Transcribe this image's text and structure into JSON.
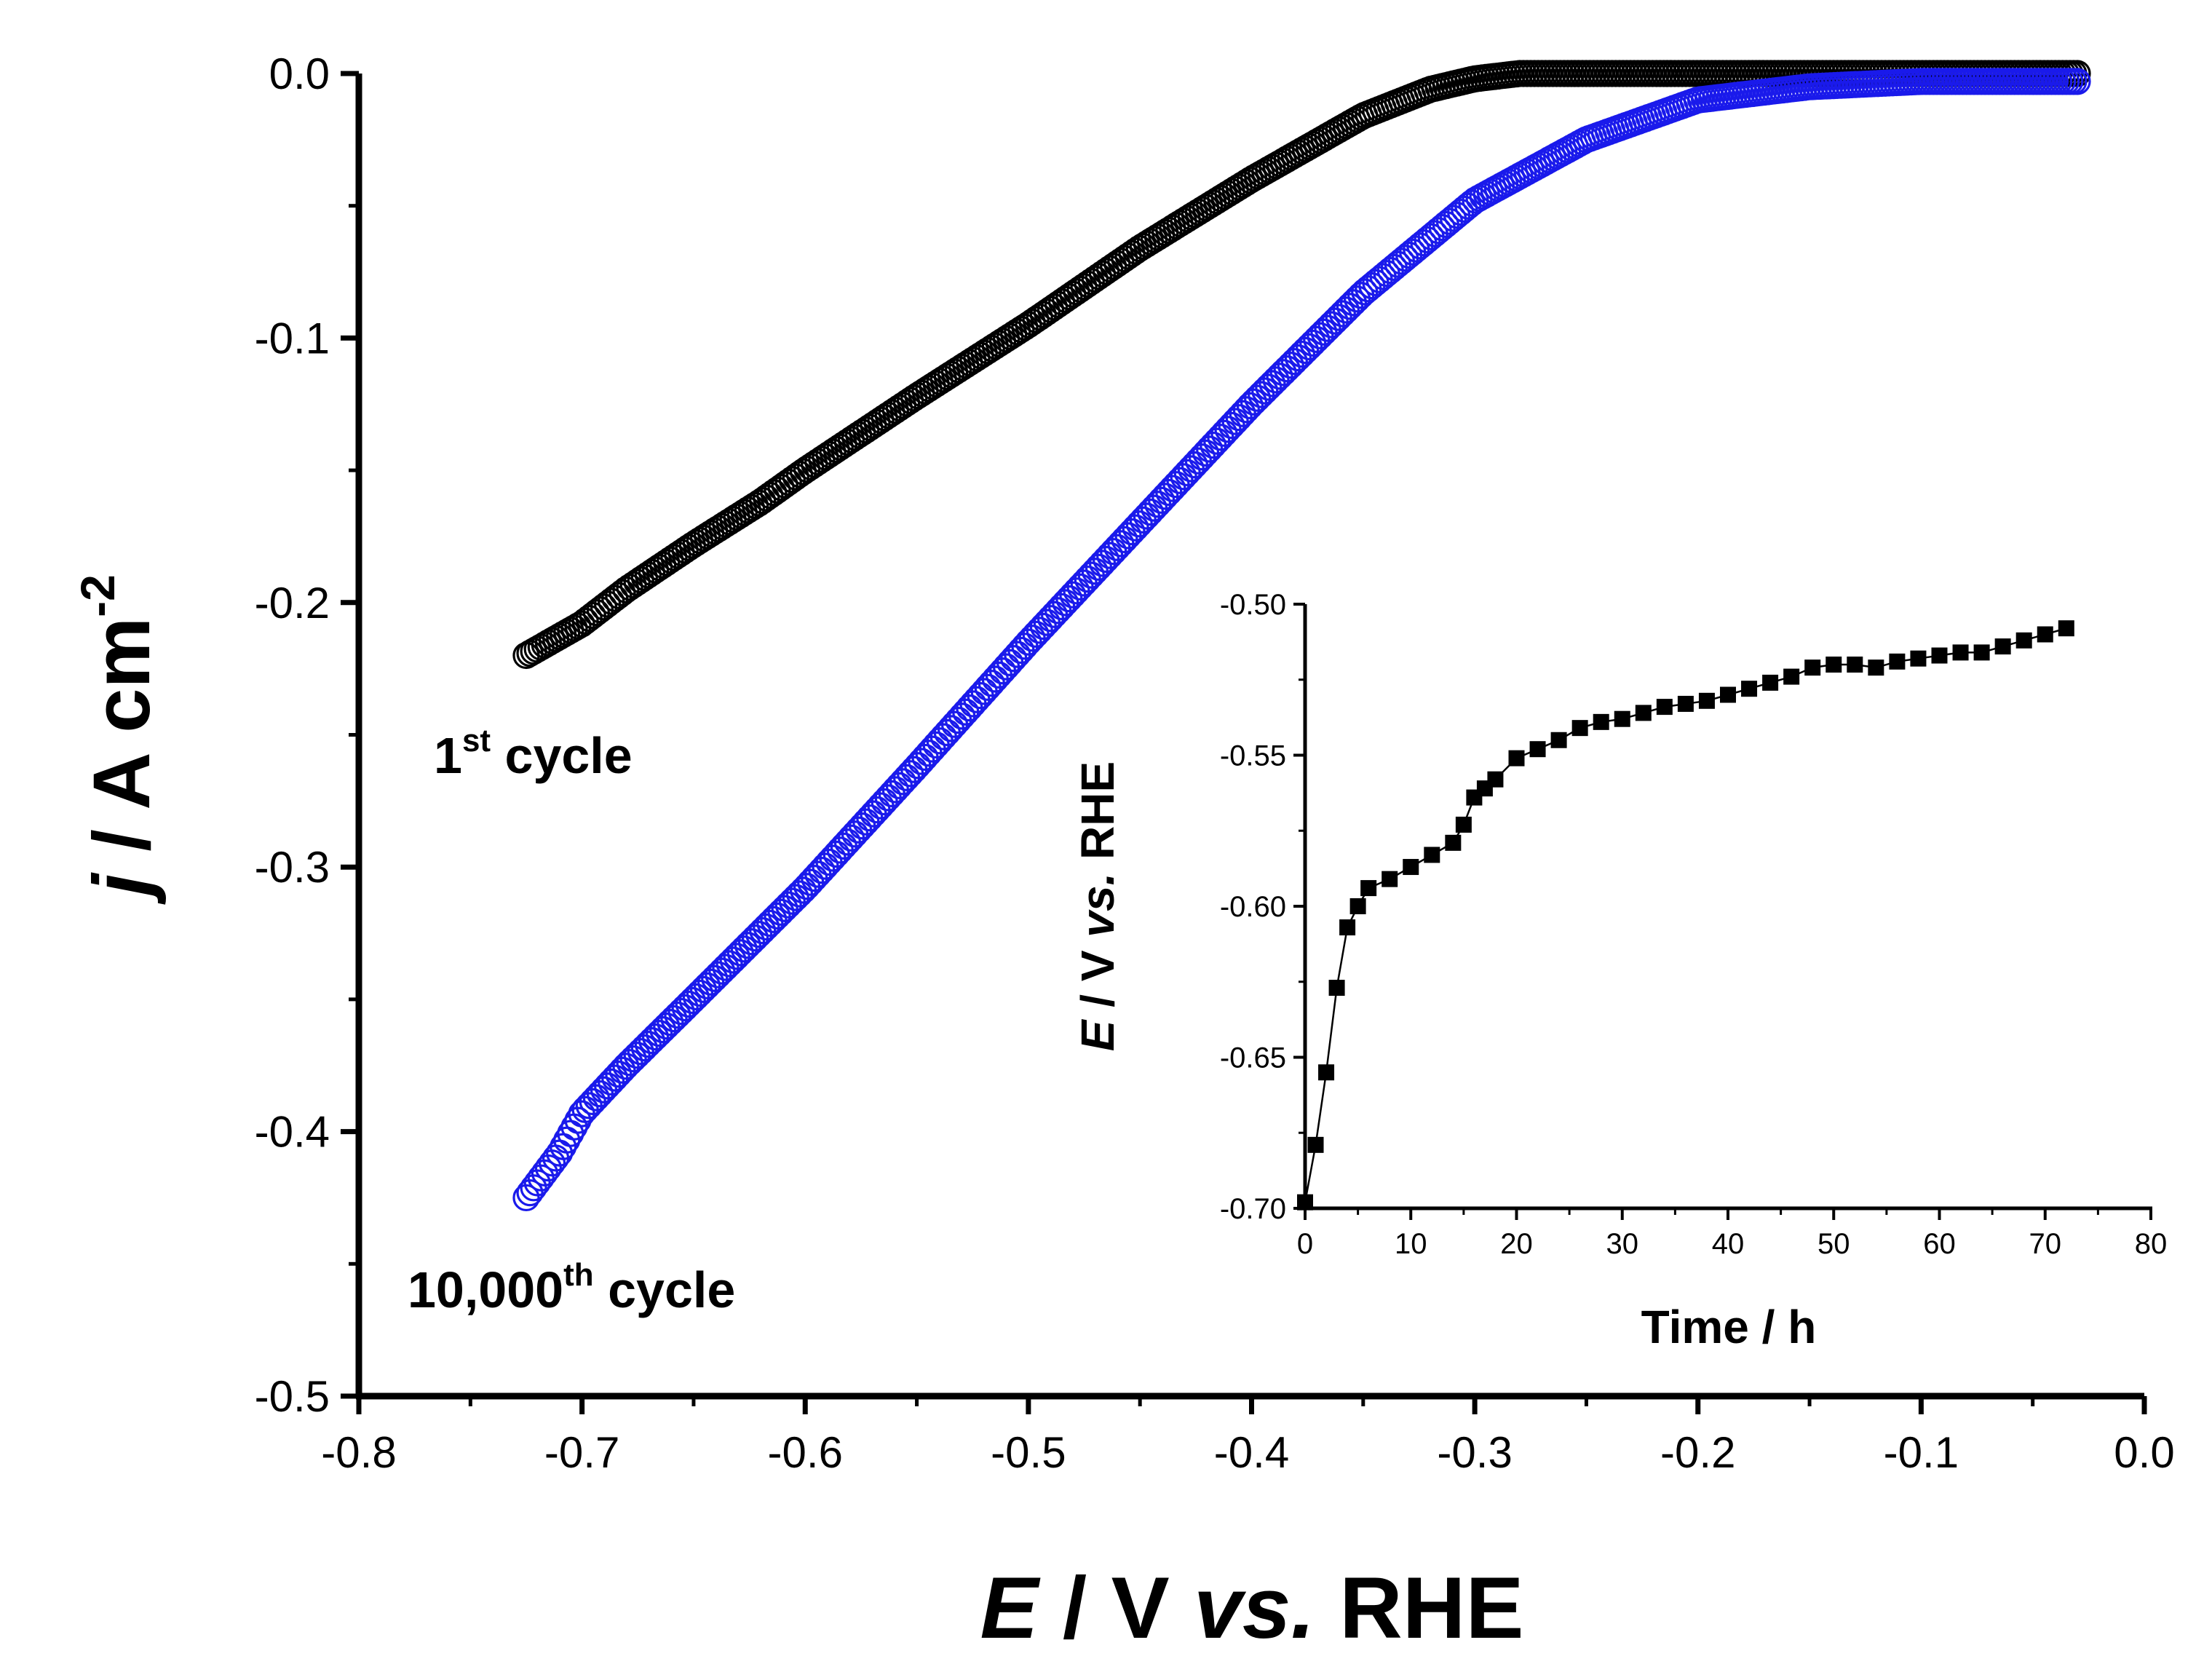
{
  "chart_data": [
    {
      "type": "scatter",
      "id": "main",
      "xlim": [
        -0.8,
        0.0
      ],
      "ylim": [
        -0.5,
        0.0
      ],
      "x_ticks": [
        "-0.8",
        "-0.7",
        "-0.6",
        "-0.5",
        "-0.4",
        "-0.3",
        "-0.2",
        "-0.1",
        "0.0"
      ],
      "y_ticks": [
        "0.0",
        "-0.1",
        "-0.2",
        "-0.3",
        "-0.4",
        "-0.5"
      ],
      "xlabel": {
        "italic": "E",
        "plain1": " / V ",
        "italic2": "vs.",
        "plain2": " RHE"
      },
      "ylabel": {
        "italic": "j",
        "plain": " / A cm",
        "sup": "-2"
      },
      "series": [
        {
          "name": "1st cycle",
          "color": "#000000",
          "marker": "open-circle",
          "label": {
            "base": "1",
            "sup": "st",
            "rest": " cycle"
          },
          "x": [
            -0.725,
            -0.7,
            -0.68,
            -0.65,
            -0.62,
            -0.6,
            -0.55,
            -0.5,
            -0.45,
            -0.4,
            -0.35,
            -0.32,
            -0.3,
            -0.28,
            -0.25,
            -0.2,
            -0.15,
            -0.1,
            -0.03
          ],
          "y": [
            -0.22,
            -0.208,
            -0.195,
            -0.178,
            -0.162,
            -0.15,
            -0.122,
            -0.095,
            -0.066,
            -0.04,
            -0.016,
            -0.006,
            -0.002,
            0.0,
            0.0,
            0.0,
            0.0,
            0.0,
            0.0
          ]
        },
        {
          "name": "10,000th cycle",
          "color": "#1a1aeb",
          "marker": "open-circle",
          "label": {
            "base": "10,000",
            "sup": "th",
            "rest": " cycle"
          },
          "x": [
            -0.725,
            -0.71,
            -0.7,
            -0.68,
            -0.65,
            -0.6,
            -0.55,
            -0.5,
            -0.45,
            -0.4,
            -0.35,
            -0.3,
            -0.25,
            -0.2,
            -0.15,
            -0.1,
            -0.05,
            -0.03
          ],
          "y": [
            -0.425,
            -0.408,
            -0.393,
            -0.375,
            -0.35,
            -0.308,
            -0.262,
            -0.215,
            -0.17,
            -0.125,
            -0.083,
            -0.048,
            -0.025,
            -0.01,
            -0.005,
            -0.003,
            -0.003,
            -0.003
          ]
        }
      ]
    },
    {
      "type": "line",
      "id": "inset",
      "xlim": [
        0,
        80
      ],
      "ylim": [
        -0.7,
        -0.5
      ],
      "x_ticks": [
        "0",
        "10",
        "20",
        "30",
        "40",
        "50",
        "60",
        "70",
        "80"
      ],
      "y_ticks": [
        "-0.50",
        "-0.55",
        "-0.60",
        "-0.65",
        "-0.70"
      ],
      "xlabel": "Time / h",
      "ylabel": {
        "italic": "E",
        "plain1": " / V ",
        "italic2": "vs.",
        "plain2": " RHE"
      },
      "marker": "filled-square",
      "color": "#000000",
      "x": [
        0,
        1,
        2,
        3,
        4,
        5,
        6,
        8,
        10,
        12,
        14,
        15,
        16,
        17,
        18,
        20,
        22,
        24,
        26,
        28,
        30,
        32,
        34,
        36,
        38,
        40,
        42,
        44,
        46,
        48,
        50,
        52,
        54,
        56,
        58,
        60,
        62,
        64,
        66,
        68,
        70,
        72
      ],
      "y": [
        -0.698,
        -0.679,
        -0.655,
        -0.627,
        -0.607,
        -0.6,
        -0.594,
        -0.591,
        -0.587,
        -0.583,
        -0.579,
        -0.573,
        -0.564,
        -0.561,
        -0.558,
        -0.551,
        -0.548,
        -0.545,
        -0.541,
        -0.539,
        -0.538,
        -0.536,
        -0.534,
        -0.533,
        -0.532,
        -0.53,
        -0.528,
        -0.526,
        -0.524,
        -0.521,
        -0.52,
        -0.52,
        -0.521,
        -0.519,
        -0.518,
        -0.517,
        -0.516,
        -0.516,
        -0.514,
        -0.512,
        -0.51,
        -0.508
      ]
    }
  ]
}
